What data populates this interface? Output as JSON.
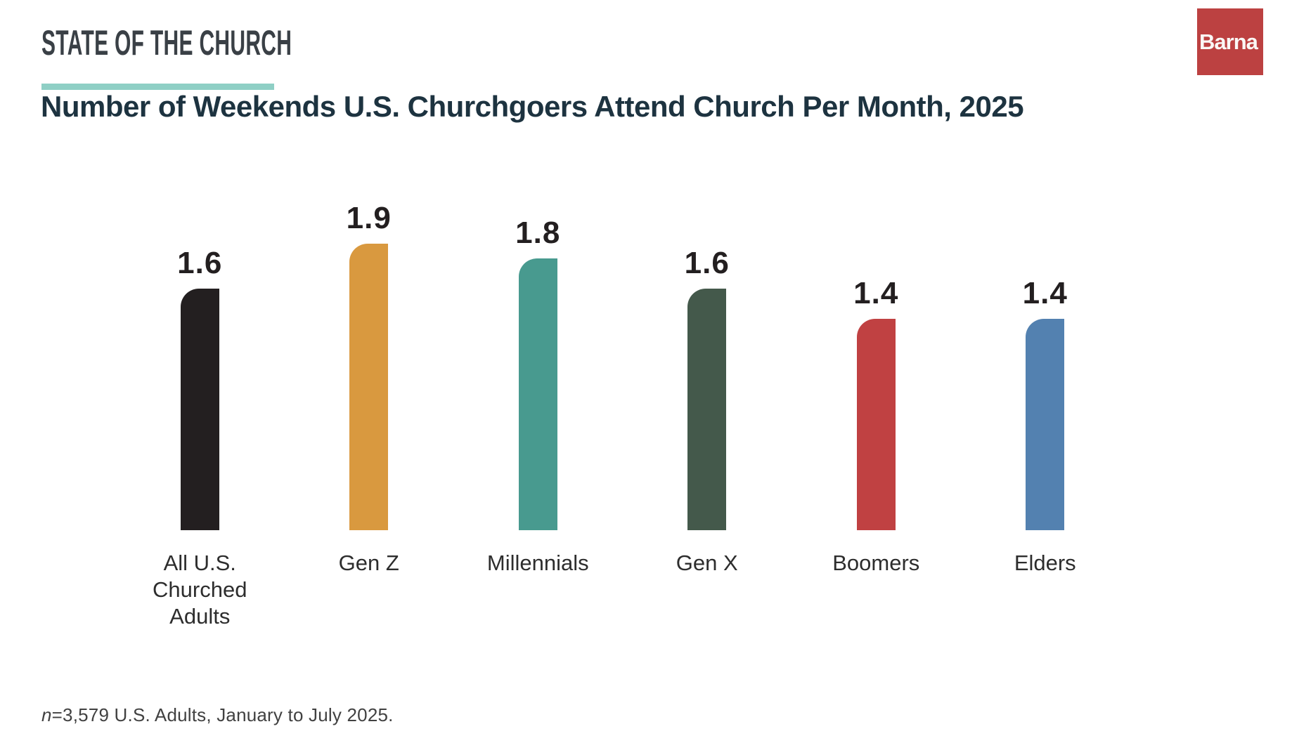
{
  "header": {
    "kicker": "STATE OF THE CHURCH",
    "logo_text": "Barna",
    "title": "Number of Weekends U.S. Churchgoers Attend Church Per Month, 2025"
  },
  "footnote": {
    "n": "n",
    "text": "=3,579 U.S. Adults, January to July 2025."
  },
  "colors": {
    "kicker_text": "#3a4046",
    "kicker_underline": "#8fcfc5",
    "logo_background": "#bc4141",
    "logo_text": "#faf7f5",
    "title_text": "#1d3340",
    "value_label_text": "#231f20",
    "category_label_text": "#2d2d2d",
    "footnote_text": "#414141",
    "page_background": "#ffffff"
  },
  "chart_data": {
    "type": "bar",
    "title": "Number of Weekends U.S. Churchgoers Attend Church Per Month, 2025",
    "categories": [
      "All U.S. Churched Adults",
      "Gen Z",
      "Millennials",
      "Gen X",
      "Boomers",
      "Elders"
    ],
    "values": [
      1.6,
      1.9,
      1.8,
      1.6,
      1.4,
      1.4
    ],
    "value_labels": [
      "1.6",
      "1.9",
      "1.8",
      "1.6",
      "1.4",
      "1.4"
    ],
    "bar_colors": [
      "#231f20",
      "#d9993f",
      "#489a8f",
      "#44594b",
      "#c04142",
      "#5381b0"
    ],
    "ylim": [
      0,
      2.0
    ],
    "grid": false,
    "legend": null,
    "xlabel": "",
    "ylabel": ""
  }
}
